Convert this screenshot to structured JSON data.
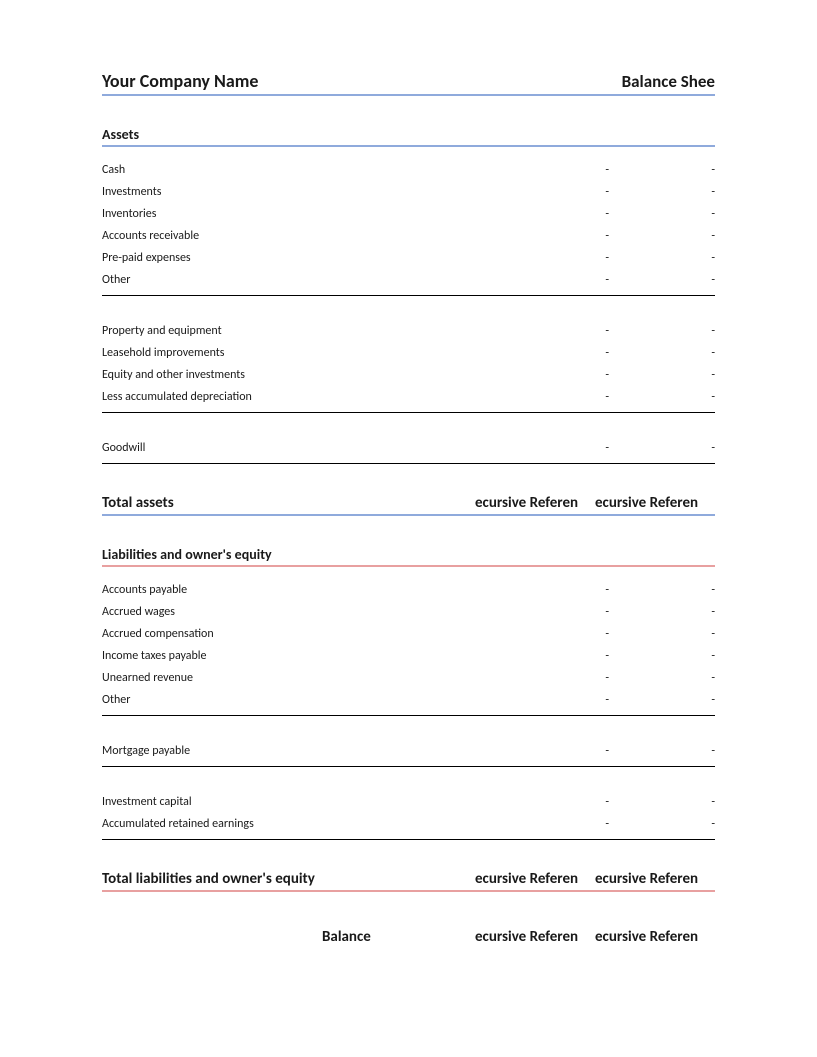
{
  "colors": {
    "blue_rule": "#8faadc",
    "red_rule": "#e8a0a0",
    "text": "#1a1a1a",
    "black_rule": "#000000",
    "background": "#ffffff"
  },
  "typography": {
    "font_family": "Calibri",
    "header_fontsize": 18,
    "section_fontsize": 14,
    "body_fontsize": 12
  },
  "header": {
    "company": "Your Company Name",
    "title": "Balance Shee"
  },
  "assets": {
    "heading": "Assets",
    "current_items": [
      {
        "label": "Cash",
        "v1": "-",
        "v2": "-"
      },
      {
        "label": "Investments",
        "v1": "-",
        "v2": "-"
      },
      {
        "label": "Inventories",
        "v1": "-",
        "v2": "-"
      },
      {
        "label": "Accounts receivable",
        "v1": "-",
        "v2": "-"
      },
      {
        "label": "Pre-paid expenses",
        "v1": "-",
        "v2": "-"
      },
      {
        "label": "Other",
        "v1": "-",
        "v2": "-"
      }
    ],
    "fixed_items": [
      {
        "label": "Property and equipment",
        "v1": "-",
        "v2": "-"
      },
      {
        "label": "Leasehold improvements",
        "v1": "-",
        "v2": "-"
      },
      {
        "label": "Equity and other investments",
        "v1": "-",
        "v2": "-"
      },
      {
        "label": "Less accumulated depreciation",
        "v1": "-",
        "v2": "-"
      }
    ],
    "other_items": [
      {
        "label": "Goodwill",
        "v1": "-",
        "v2": "-"
      }
    ],
    "total_label": "Total assets",
    "total_v1": "ecursive Referen",
    "total_v2": "ecursive Referen"
  },
  "liabilities": {
    "heading": "Liabilities and owner's equity",
    "current_items": [
      {
        "label": "Accounts payable",
        "v1": "-",
        "v2": "-"
      },
      {
        "label": "Accrued wages",
        "v1": "-",
        "v2": "-"
      },
      {
        "label": "Accrued compensation",
        "v1": "-",
        "v2": "-"
      },
      {
        "label": "Income taxes payable",
        "v1": "-",
        "v2": "-"
      },
      {
        "label": "Unearned revenue",
        "v1": "-",
        "v2": "-"
      },
      {
        "label": "Other",
        "v1": "-",
        "v2": "-"
      }
    ],
    "long_term_items": [
      {
        "label": "Mortgage payable",
        "v1": "-",
        "v2": "-"
      }
    ],
    "equity_items": [
      {
        "label": "Investment capital",
        "v1": "-",
        "v2": "-"
      },
      {
        "label": "Accumulated retained earnings",
        "v1": "-",
        "v2": "-"
      }
    ],
    "total_label": "Total liabilities and owner's equity",
    "total_v1": "ecursive Referen",
    "total_v2": "ecursive Referen"
  },
  "footer": {
    "label": "Balance",
    "v1": "ecursive Referen",
    "v2": "ecursive Referen"
  }
}
